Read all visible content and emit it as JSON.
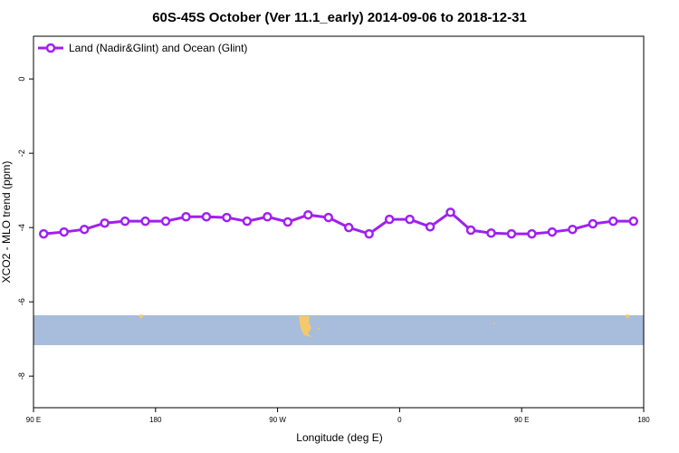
{
  "chart_data": {
    "type": "line",
    "title": "60S-45S October (Ver 11.1_early)   2014-09-06 to 2018-12-31",
    "x_label": "Longitude (deg E)",
    "y_label": "XCO2 - MLO trend (ppm)",
    "x": [
      97.5,
      112.5,
      127.5,
      142.5,
      157.5,
      172.5,
      187.5,
      202.5,
      217.5,
      232.5,
      247.5,
      262.5,
      277.5,
      292.5,
      307.5,
      322.5,
      337.5,
      352.5,
      367.5,
      382.5,
      397.5,
      412.5,
      427.5,
      442.5,
      457.5,
      472.5,
      487.5,
      502.5,
      517.5,
      532.5
    ],
    "series": [
      {
        "name": "Land (Nadir&Glint) and Ocean (Glint)",
        "color": "#a020f0",
        "values": [
          -4.17,
          -4.12,
          -4.05,
          -3.88,
          -3.83,
          -3.83,
          -3.83,
          -3.71,
          -3.71,
          -3.73,
          -3.83,
          -3.71,
          -3.85,
          -3.66,
          -3.73,
          -4.0,
          -4.17,
          -3.78,
          -3.78,
          -3.98,
          -3.59,
          -4.07,
          -4.15,
          -4.17,
          -4.17,
          -4.12,
          -4.05,
          -3.9,
          -3.83,
          -3.83
        ]
      }
    ],
    "xlim": [
      90,
      540
    ],
    "xticks": [
      {
        "value": 90,
        "label": "90 E"
      },
      180,
      {
        "value": 270,
        "label": "90 W"
      },
      {
        "value": 360,
        "label": "0"
      },
      {
        "value": 450,
        "label": "90 E"
      },
      {
        "value": 540,
        "label": "180"
      }
    ],
    "ylim": [
      -8.85,
      1.15
    ],
    "yticks": [
      0,
      -2,
      -4,
      -6,
      -8
    ],
    "legend_position": "top-left"
  }
}
